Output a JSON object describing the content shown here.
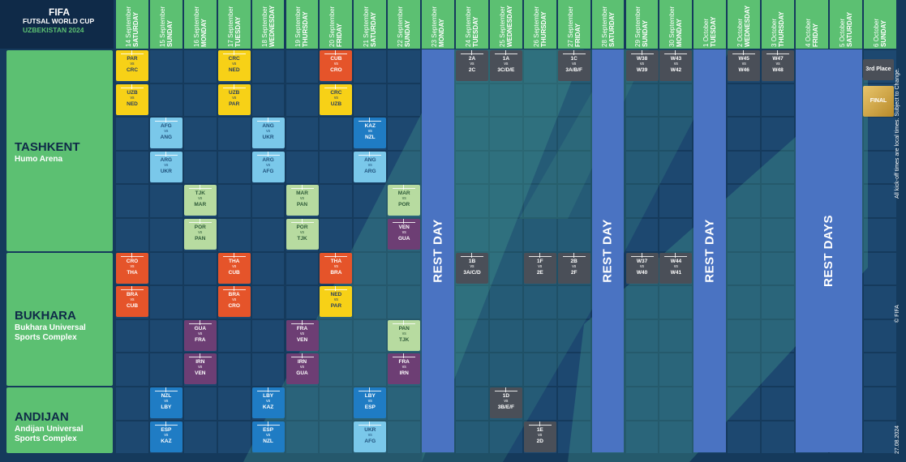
{
  "logo": {
    "line1": "FIFA",
    "line2": "FUTSAL WORLD CUP",
    "line3": "UZBEKISTAN 2024"
  },
  "days": [
    {
      "day": "SATURDAY",
      "date": "14 September"
    },
    {
      "day": "SUNDAY",
      "date": "15 September"
    },
    {
      "day": "MONDAY",
      "date": "16 September"
    },
    {
      "day": "TUESDAY",
      "date": "17 September"
    },
    {
      "day": "WEDNESDAY",
      "date": "18 September"
    },
    {
      "day": "THURSDAY",
      "date": "19 September"
    },
    {
      "day": "FRIDAY",
      "date": "20 September"
    },
    {
      "day": "SATURDAY",
      "date": "21 September"
    },
    {
      "day": "SUNDAY",
      "date": "22 September"
    },
    {
      "day": "MONDAY",
      "date": "23 September"
    },
    {
      "day": "TUESDAY",
      "date": "24 September"
    },
    {
      "day": "WEDNESDAY",
      "date": "25 September"
    },
    {
      "day": "THURSDAY",
      "date": "26 September"
    },
    {
      "day": "FRIDAY",
      "date": "27 September"
    },
    {
      "day": "SATURDAY",
      "date": "28 September"
    },
    {
      "day": "SUNDAY",
      "date": "29 September"
    },
    {
      "day": "MONDAY",
      "date": "30 September"
    },
    {
      "day": "TUESDAY",
      "date": "1 October"
    },
    {
      "day": "WEDNESDAY",
      "date": "2 October"
    },
    {
      "day": "THURSDAY",
      "date": "3 October"
    },
    {
      "day": "FRIDAY",
      "date": "4 October"
    },
    {
      "day": "SATURDAY",
      "date": "5 October"
    },
    {
      "day": "SUNDAY",
      "date": "6 October"
    }
  ],
  "venues": [
    {
      "name": "TASHKENT",
      "sub": "Humo Arena"
    },
    {
      "name": "BUKHARA",
      "sub": "Bukhara Universal Sports Complex"
    },
    {
      "name": "ANDIJAN",
      "sub": "Andijan Universal Sports Complex"
    }
  ],
  "rest_labels": [
    "REST DAY",
    "REST DAY",
    "REST DAY",
    "REST DAYS"
  ],
  "vs": "vs",
  "matches": [
    {
      "col": 0,
      "row": 0,
      "a": "PAR",
      "b": "CRC",
      "color": "yellow"
    },
    {
      "col": 0,
      "row": 1,
      "a": "UZB",
      "b": "NED",
      "color": "yellow"
    },
    {
      "col": 3,
      "row": 0,
      "a": "CRC",
      "b": "NED",
      "color": "yellow"
    },
    {
      "col": 3,
      "row": 1,
      "a": "UZB",
      "b": "PAR",
      "color": "yellow"
    },
    {
      "col": 6,
      "row": 0,
      "a": "CUB",
      "b": "CRO",
      "color": "orange"
    },
    {
      "col": 6,
      "row": 1,
      "a": "CRC",
      "b": "UZB",
      "color": "yellow"
    },
    {
      "col": 1,
      "row": 2,
      "a": "AFG",
      "b": "ANG",
      "color": "sky"
    },
    {
      "col": 1,
      "row": 3,
      "a": "ARG",
      "b": "UKR",
      "color": "sky"
    },
    {
      "col": 4,
      "row": 2,
      "a": "ANG",
      "b": "UKR",
      "color": "sky"
    },
    {
      "col": 4,
      "row": 3,
      "a": "ARG",
      "b": "AFG",
      "color": "sky"
    },
    {
      "col": 7,
      "row": 2,
      "a": "KAZ",
      "b": "NZL",
      "color": "blue"
    },
    {
      "col": 7,
      "row": 3,
      "a": "ANG",
      "b": "ARG",
      "color": "sky"
    },
    {
      "col": 2,
      "row": 4,
      "a": "TJK",
      "b": "MAR",
      "color": "lgreen"
    },
    {
      "col": 2,
      "row": 5,
      "a": "POR",
      "b": "PAN",
      "color": "lgreen"
    },
    {
      "col": 5,
      "row": 4,
      "a": "MAR",
      "b": "PAN",
      "color": "lgreen"
    },
    {
      "col": 5,
      "row": 5,
      "a": "POR",
      "b": "TJK",
      "color": "lgreen"
    },
    {
      "col": 8,
      "row": 4,
      "a": "MAR",
      "b": "POR",
      "color": "lgreen"
    },
    {
      "col": 8,
      "row": 5,
      "a": "VEN",
      "b": "GUA",
      "color": "purple"
    },
    {
      "col": 0,
      "row": 6,
      "a": "CRO",
      "b": "THA",
      "color": "orange"
    },
    {
      "col": 0,
      "row": 7,
      "a": "BRA",
      "b": "CUB",
      "color": "orange"
    },
    {
      "col": 3,
      "row": 6,
      "a": "THA",
      "b": "CUB",
      "color": "orange"
    },
    {
      "col": 3,
      "row": 7,
      "a": "BRA",
      "b": "CRO",
      "color": "orange"
    },
    {
      "col": 6,
      "row": 6,
      "a": "THA",
      "b": "BRA",
      "color": "orange"
    },
    {
      "col": 6,
      "row": 7,
      "a": "NED",
      "b": "PAR",
      "color": "yellow"
    },
    {
      "col": 2,
      "row": 8,
      "a": "GUA",
      "b": "FRA",
      "color": "purple"
    },
    {
      "col": 2,
      "row": 9,
      "a": "IRN",
      "b": "VEN",
      "color": "purple"
    },
    {
      "col": 5,
      "row": 8,
      "a": "FRA",
      "b": "VEN",
      "color": "purple"
    },
    {
      "col": 5,
      "row": 9,
      "a": "IRN",
      "b": "GUA",
      "color": "purple"
    },
    {
      "col": 8,
      "row": 8,
      "a": "PAN",
      "b": "TJK",
      "color": "lgreen"
    },
    {
      "col": 8,
      "row": 9,
      "a": "FRA",
      "b": "IRN",
      "color": "purple"
    },
    {
      "col": 1,
      "row": 10,
      "a": "NZL",
      "b": "LBY",
      "color": "blue"
    },
    {
      "col": 1,
      "row": 11,
      "a": "ESP",
      "b": "KAZ",
      "color": "blue"
    },
    {
      "col": 4,
      "row": 10,
      "a": "LBY",
      "b": "KAZ",
      "color": "blue"
    },
    {
      "col": 4,
      "row": 11,
      "a": "ESP",
      "b": "NZL",
      "color": "blue"
    },
    {
      "col": 7,
      "row": 10,
      "a": "LBY",
      "b": "ESP",
      "color": "blue"
    },
    {
      "col": 7,
      "row": 11,
      "a": "UKR",
      "b": "AFG",
      "color": "sky"
    },
    {
      "col": 10,
      "row": 0,
      "a": "2A",
      "b": "2C",
      "color": "ko"
    },
    {
      "col": 11,
      "row": 0,
      "a": "1A",
      "b": "3C/D/E",
      "color": "ko"
    },
    {
      "col": 13,
      "row": 0,
      "a": "1C",
      "b": "3A/B/F",
      "color": "ko"
    },
    {
      "col": 15,
      "row": 0,
      "a": "W38",
      "b": "W39",
      "color": "ko"
    },
    {
      "col": 16,
      "row": 0,
      "a": "W43",
      "b": "W42",
      "color": "ko"
    },
    {
      "col": 18,
      "row": 0,
      "a": "W45",
      "b": "W46",
      "color": "ko"
    },
    {
      "col": 19,
      "row": 0,
      "a": "W47",
      "b": "W48",
      "color": "ko"
    },
    {
      "col": 10,
      "row": 6,
      "a": "1B",
      "b": "3A/C/D",
      "color": "ko"
    },
    {
      "col": 12,
      "row": 6,
      "a": "1F",
      "b": "2E",
      "color": "ko"
    },
    {
      "col": 13,
      "row": 6,
      "a": "2B",
      "b": "2F",
      "color": "ko"
    },
    {
      "col": 15,
      "row": 6,
      "a": "W37",
      "b": "W40",
      "color": "ko"
    },
    {
      "col": 16,
      "row": 6,
      "a": "W44",
      "b": "W41",
      "color": "ko"
    },
    {
      "col": 11,
      "row": 10,
      "a": "1D",
      "b": "3B/E/F",
      "color": "ko"
    },
    {
      "col": 12,
      "row": 11,
      "a": "1E",
      "b": "2D",
      "color": "ko"
    }
  ],
  "finals": {
    "third_place": "3rd Place",
    "final": "FINAL"
  },
  "side_note": "All kick-off times are local times. Subject to Change.",
  "copyright": "© FIFA",
  "print_date": "27.08.2024"
}
